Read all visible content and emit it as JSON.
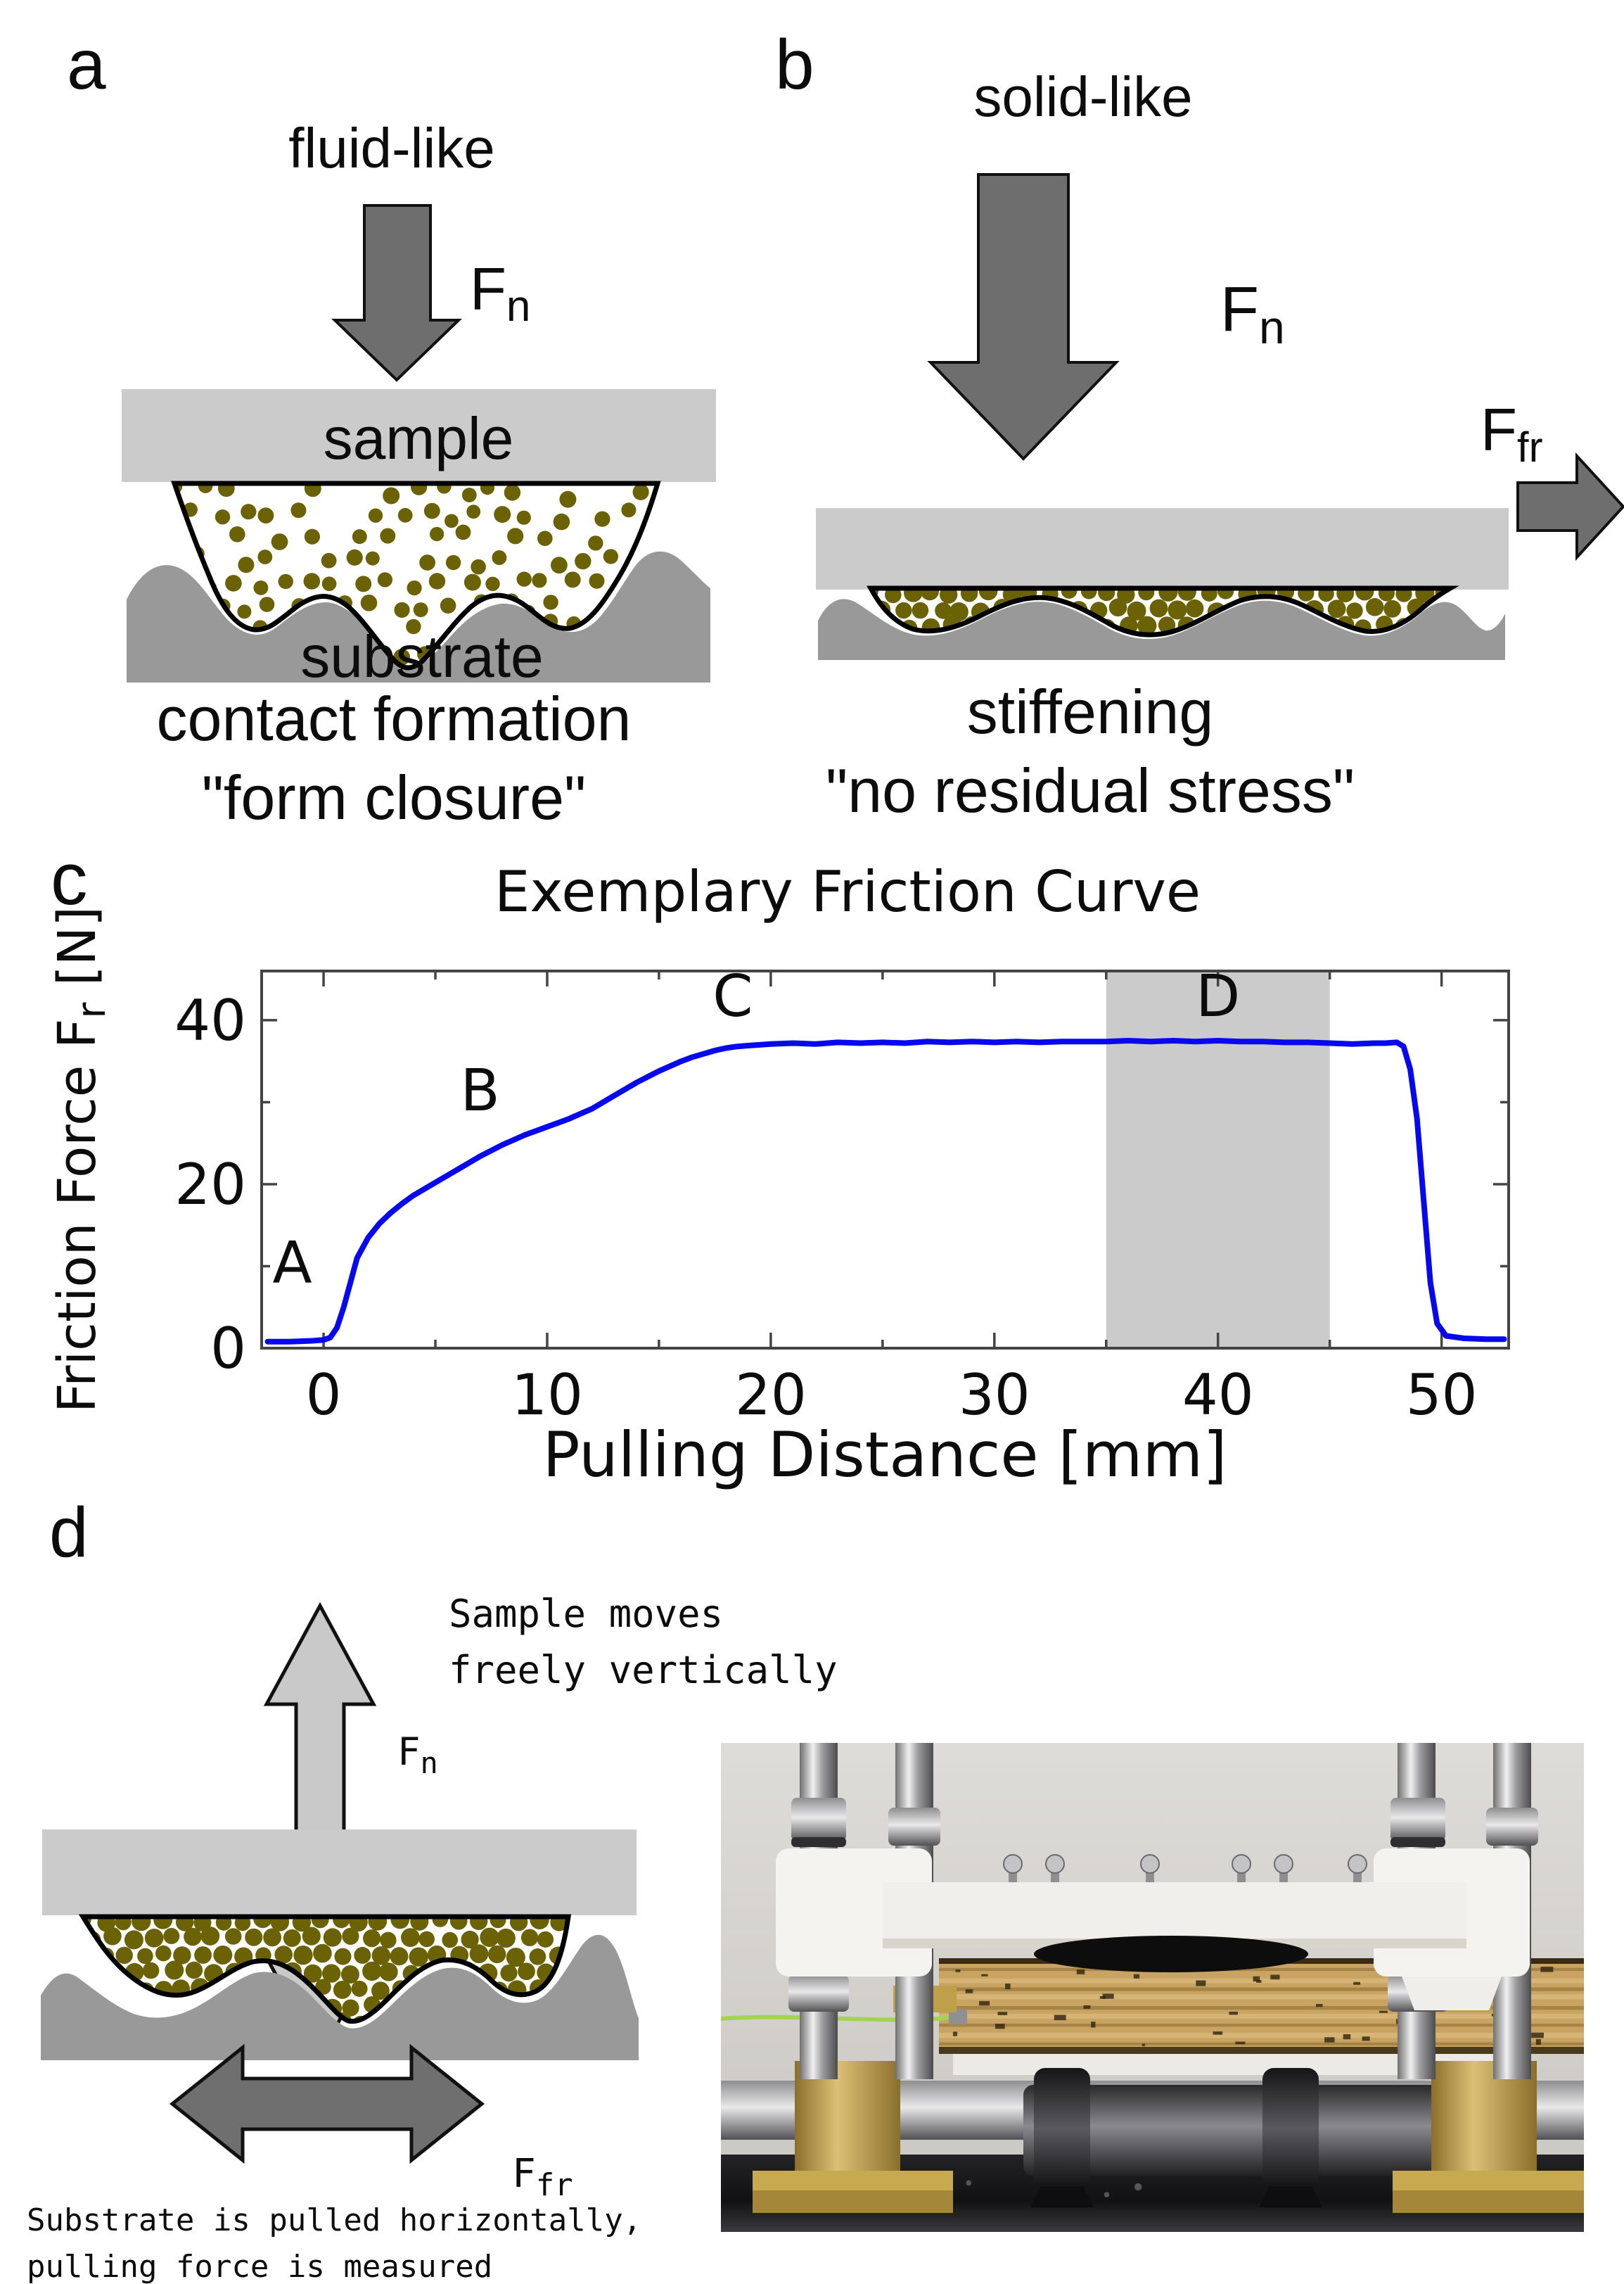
{
  "panels": {
    "a": {
      "label": "a",
      "state": "fluid-like",
      "force": {
        "base": "F",
        "sub": "n"
      },
      "sample": "sample",
      "substrate": "substrate",
      "caption": [
        "contact formation",
        "\"form closure\""
      ]
    },
    "b": {
      "label": "b",
      "state": "solid-like",
      "force": {
        "base": "F",
        "sub": "n"
      },
      "friction": {
        "base": "F",
        "sub": "fr"
      },
      "caption": [
        "stiffening",
        "\"no residual stress\""
      ]
    },
    "c": {
      "label": "c"
    },
    "d": {
      "label": "d",
      "note": [
        "Sample moves",
        "freely vertically"
      ],
      "force": {
        "base": "F",
        "sub": "n"
      },
      "friction": {
        "base": "F",
        "sub": "fr"
      },
      "caption": [
        "Substrate is pulled horizontally,",
        "pulling force is measured"
      ]
    }
  },
  "chart_data": {
    "type": "line",
    "title": "Exemplary Friction Curve",
    "xlabel": "Pulling Distance [mm]",
    "ylabel_pre": "Friction Force F",
    "ylabel_sub": "r",
    "ylabel_post": " [N]",
    "xlim": [
      -2.77,
      53.0
    ],
    "ylim": [
      0,
      46
    ],
    "xticks": [
      0,
      10,
      20,
      30,
      40,
      50
    ],
    "xminor": [
      5,
      15,
      25,
      35,
      45
    ],
    "yticks": [
      0,
      20,
      40
    ],
    "yminor": [
      10,
      30
    ],
    "grid": false,
    "legend": "none",
    "shaded_region": {
      "x_start": 35,
      "x_end": 45
    },
    "annotations": [
      {
        "text": "A",
        "x": -1.4,
        "y": 8.0
      },
      {
        "text": "B",
        "x": 7.0,
        "y": 29.0
      },
      {
        "text": "C",
        "x": 18.3,
        "y": 40.5
      },
      {
        "text": "D",
        "x": 40.0,
        "y": 40.5
      }
    ],
    "series": [
      {
        "name": "friction force",
        "x": [
          -2.5,
          -1.5,
          -0.5,
          0,
          0.3,
          0.6,
          0.9,
          1.2,
          1.5,
          2,
          2.5,
          3,
          3.5,
          4,
          4.5,
          5,
          5.5,
          6,
          6.5,
          7,
          7.5,
          8,
          8.5,
          9,
          9.5,
          10,
          10.5,
          11,
          11.5,
          12,
          12.5,
          13,
          13.5,
          14,
          14.5,
          15,
          15.5,
          16,
          16.5,
          17,
          17.5,
          18,
          18.5,
          19,
          19.5,
          20,
          21,
          22,
          23,
          24,
          25,
          26,
          27,
          28,
          29,
          30,
          31,
          32,
          33,
          34,
          35,
          36,
          37,
          38,
          39,
          40,
          41,
          42,
          43,
          44,
          45,
          46,
          47,
          47.5,
          48,
          48.3,
          48.6,
          48.9,
          49.2,
          49.5,
          49.8,
          50.2,
          51,
          52,
          52.8
        ],
        "y": [
          0.8,
          0.8,
          0.9,
          1.0,
          1.3,
          2.5,
          5,
          8,
          11,
          13.5,
          15.2,
          16.5,
          17.6,
          18.6,
          19.4,
          20.2,
          21,
          21.8,
          22.6,
          23.4,
          24.1,
          24.8,
          25.4,
          26,
          26.5,
          27,
          27.5,
          28,
          28.6,
          29.2,
          30,
          30.8,
          31.6,
          32.4,
          33.1,
          33.8,
          34.4,
          35,
          35.5,
          35.9,
          36.3,
          36.6,
          36.8,
          36.9,
          37.0,
          37.1,
          37.2,
          37.1,
          37.3,
          37.2,
          37.3,
          37.2,
          37.4,
          37.3,
          37.4,
          37.3,
          37.4,
          37.3,
          37.4,
          37.4,
          37.4,
          37.5,
          37.4,
          37.5,
          37.4,
          37.5,
          37.4,
          37.4,
          37.3,
          37.3,
          37.2,
          37.1,
          37.2,
          37.2,
          37.3,
          36.8,
          34,
          28,
          18,
          8,
          3,
          1.5,
          1.2,
          1.1,
          1.1
        ]
      }
    ]
  },
  "colors": {
    "particle": "#6b6105",
    "sample_block": "#cbcbcb",
    "substrate": "#999999",
    "arrow_dark": "#6e6e6e",
    "arrow_light": "#c9c9c9",
    "curve_blue": "#0808ee",
    "shade": "#cbcbcb",
    "frame": "#444444",
    "plywood": "#c8a361",
    "brass": "#b3924a",
    "base_metal": "#1b1b1d"
  }
}
